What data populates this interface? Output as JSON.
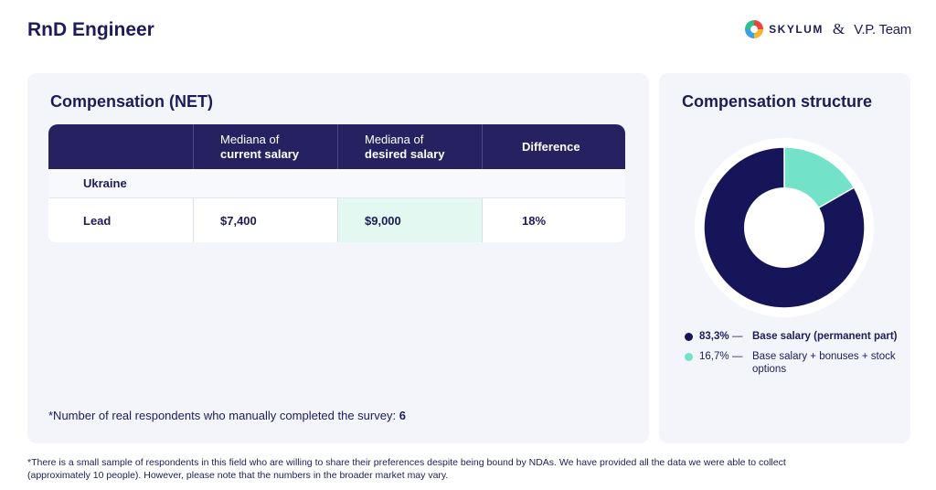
{
  "page": {
    "title": "RnD Engineer"
  },
  "brand": {
    "skylum": "SKYLUM",
    "ampersand": "&",
    "vp_team": "V.P. Team"
  },
  "compensation": {
    "title": "Compensation (NET)",
    "headers": [
      {
        "line1": "",
        "line2": ""
      },
      {
        "line1": "Mediana of",
        "line2": "current salary"
      },
      {
        "line1": "Mediana of",
        "line2": "desired salary"
      },
      {
        "line1": "",
        "line2": "Difference"
      }
    ],
    "group": "Ukraine",
    "row": {
      "position": "Lead",
      "current": "$7,400",
      "desired": "$9,000",
      "difference": "18%"
    },
    "respondents_label": "*Number of real respondents who manually completed the survey:",
    "respondents_count": "6"
  },
  "structure": {
    "title": "Compensation structure",
    "legend": [
      {
        "value": "83,3%",
        "dash": "—",
        "label": "Base salary (permanent part)"
      },
      {
        "value": "16,7%",
        "dash": "—",
        "label": "Base salary + bonuses + stock options"
      }
    ]
  },
  "chart_data": {
    "type": "pie",
    "title": "Compensation structure",
    "labels": [
      "Base salary (permanent part)",
      "Base salary + bonuses + stock options"
    ],
    "values": [
      83.3,
      16.7
    ],
    "colors": [
      "#171559",
      "#72e3c9"
    ],
    "hole": true
  },
  "footnote": "*There is a small sample of respondents in this field who are willing to share their preferences despite being bound by NDAs. We have provided all the data we were able to collect (approximately 10 people). However, please note that the numbers in the broader market may vary."
}
